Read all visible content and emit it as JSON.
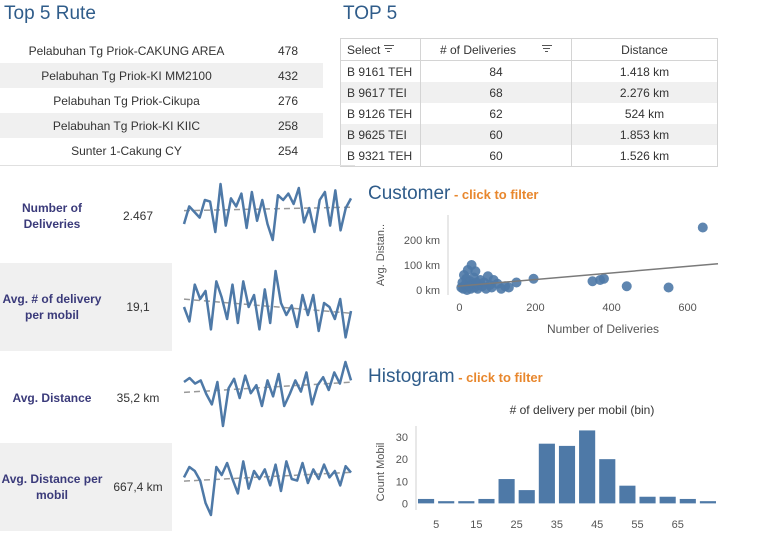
{
  "top5_rute": {
    "title": "Top 5 Rute",
    "rows": [
      {
        "route": "Pelabuhan Tg Priok-CAKUNG AREA",
        "count": "478"
      },
      {
        "route": "Pelabuhan Tg Priok-KI MM2100",
        "count": "432"
      },
      {
        "route": "Pelabuhan Tg Priok-Cikupa",
        "count": "276"
      },
      {
        "route": "Pelabuhan Tg Priok-KI KIIC",
        "count": "258"
      },
      {
        "route": "Sunter 1-Cakung CY",
        "count": "254"
      }
    ]
  },
  "top5": {
    "title": "TOP 5",
    "headers": [
      "Select",
      "# of Deliveries",
      "Distance"
    ],
    "rows": [
      {
        "plate": "B 9161 TEH",
        "deliveries": "84",
        "distance": "1.418 km"
      },
      {
        "plate": "B 9617 TEI",
        "deliveries": "68",
        "distance": "2.276 km"
      },
      {
        "plate": "B 9126 TEH",
        "deliveries": "62",
        "distance": "524 km"
      },
      {
        "plate": "B 9625 TEI",
        "deliveries": "60",
        "distance": "1.853 km"
      },
      {
        "plate": "B 9321 TEH",
        "deliveries": "60",
        "distance": "1.526 km"
      }
    ]
  },
  "kpis": [
    {
      "label": "Number of Deliveries",
      "value": "2.467"
    },
    {
      "label": "Avg. # of delivery per mobil",
      "value": "19,1"
    },
    {
      "label": "Avg. Distance",
      "value": "35,2 km"
    },
    {
      "label": "Avg. Distance per mobil",
      "value": "667,4 km"
    }
  ],
  "customer": {
    "title": "Customer",
    "subtitle": " - click to filter"
  },
  "histogram": {
    "title": "Histogram",
    "subtitle": " - click to filter"
  },
  "colors": {
    "accent": "#4e79a7",
    "title": "#2f5c8a",
    "filter_hint": "#e8872d",
    "trend": "#999999"
  },
  "chart_data": [
    {
      "type": "line",
      "name": "Number of Deliveries sparkline",
      "values": [
        40,
        62,
        55,
        48,
        70,
        68,
        30,
        90,
        38,
        72,
        62,
        78,
        35,
        80,
        44,
        70,
        40,
        20,
        76,
        70,
        78,
        65,
        85,
        42,
        60,
        30,
        70,
        80,
        38,
        82,
        32,
        60,
        72
      ]
    },
    {
      "type": "line",
      "name": "Avg # of delivery per mobil sparkline",
      "values": [
        50,
        32,
        78,
        60,
        70,
        22,
        82,
        62,
        35,
        78,
        30,
        82,
        50,
        65,
        22,
        72,
        30,
        95,
        55,
        40,
        52,
        25,
        65,
        40,
        65,
        20,
        55,
        50,
        35,
        60,
        12,
        45
      ]
    },
    {
      "type": "line",
      "name": "Avg Distance sparkline",
      "values": [
        70,
        75,
        68,
        72,
        55,
        42,
        70,
        15,
        62,
        74,
        50,
        78,
        56,
        66,
        40,
        72,
        52,
        80,
        40,
        55,
        72,
        58,
        82,
        42,
        66,
        76,
        60,
        82,
        68,
        95,
        72
      ]
    },
    {
      "type": "line",
      "name": "Avg Distance per mobil sparkline",
      "values": [
        62,
        75,
        70,
        58,
        30,
        15,
        75,
        65,
        80,
        60,
        42,
        82,
        48,
        70,
        60,
        72,
        52,
        78,
        45,
        82,
        60,
        58,
        80,
        55,
        72,
        60,
        78,
        62,
        70,
        52,
        76,
        68
      ]
    },
    {
      "type": "scatter",
      "title": "Customer",
      "xlabel": "Number of Deliveries",
      "ylabel": "Avg. Distan..",
      "xlim": [
        -30,
        680
      ],
      "ylim": [
        -20,
        300
      ],
      "xticks": [
        0,
        200,
        400,
        600
      ],
      "yticks": [
        "0 km",
        "100 km",
        "200 km"
      ],
      "ytick_values": [
        0,
        100,
        200
      ],
      "points": [
        [
          5,
          10
        ],
        [
          8,
          30
        ],
        [
          10,
          5
        ],
        [
          12,
          60
        ],
        [
          15,
          20
        ],
        [
          18,
          45
        ],
        [
          20,
          0
        ],
        [
          22,
          80
        ],
        [
          25,
          15
        ],
        [
          28,
          35
        ],
        [
          30,
          5
        ],
        [
          32,
          100
        ],
        [
          35,
          25
        ],
        [
          38,
          50
        ],
        [
          40,
          10
        ],
        [
          42,
          75
        ],
        [
          45,
          30
        ],
        [
          48,
          5
        ],
        [
          50,
          20
        ],
        [
          55,
          40
        ],
        [
          60,
          15
        ],
        [
          65,
          30
        ],
        [
          70,
          5
        ],
        [
          75,
          55
        ],
        [
          80,
          20
        ],
        [
          85,
          10
        ],
        [
          90,
          40
        ],
        [
          100,
          25
        ],
        [
          110,
          5
        ],
        [
          120,
          15
        ],
        [
          130,
          10
        ],
        [
          150,
          30
        ],
        [
          195,
          45
        ],
        [
          350,
          35
        ],
        [
          370,
          40
        ],
        [
          380,
          45
        ],
        [
          440,
          15
        ],
        [
          550,
          10
        ],
        [
          640,
          250
        ]
      ],
      "trend": [
        [
          -5,
          15
        ],
        [
          680,
          105
        ]
      ]
    },
    {
      "type": "bar",
      "title": "# of delivery per mobil (bin)",
      "ylabel": "Count Mobil",
      "categories": [
        0,
        5,
        10,
        15,
        20,
        25,
        30,
        35,
        40,
        45,
        50,
        55,
        60,
        65,
        70
      ],
      "xtick_labels": [
        "5",
        "15",
        "25",
        "35",
        "45",
        "55",
        "65"
      ],
      "values": [
        2,
        1,
        1,
        2,
        11,
        6,
        27,
        26,
        33,
        20,
        8,
        3,
        3,
        2,
        1
      ],
      "ylim": [
        -3,
        35
      ],
      "yticks": [
        0,
        10,
        20,
        30
      ]
    }
  ]
}
